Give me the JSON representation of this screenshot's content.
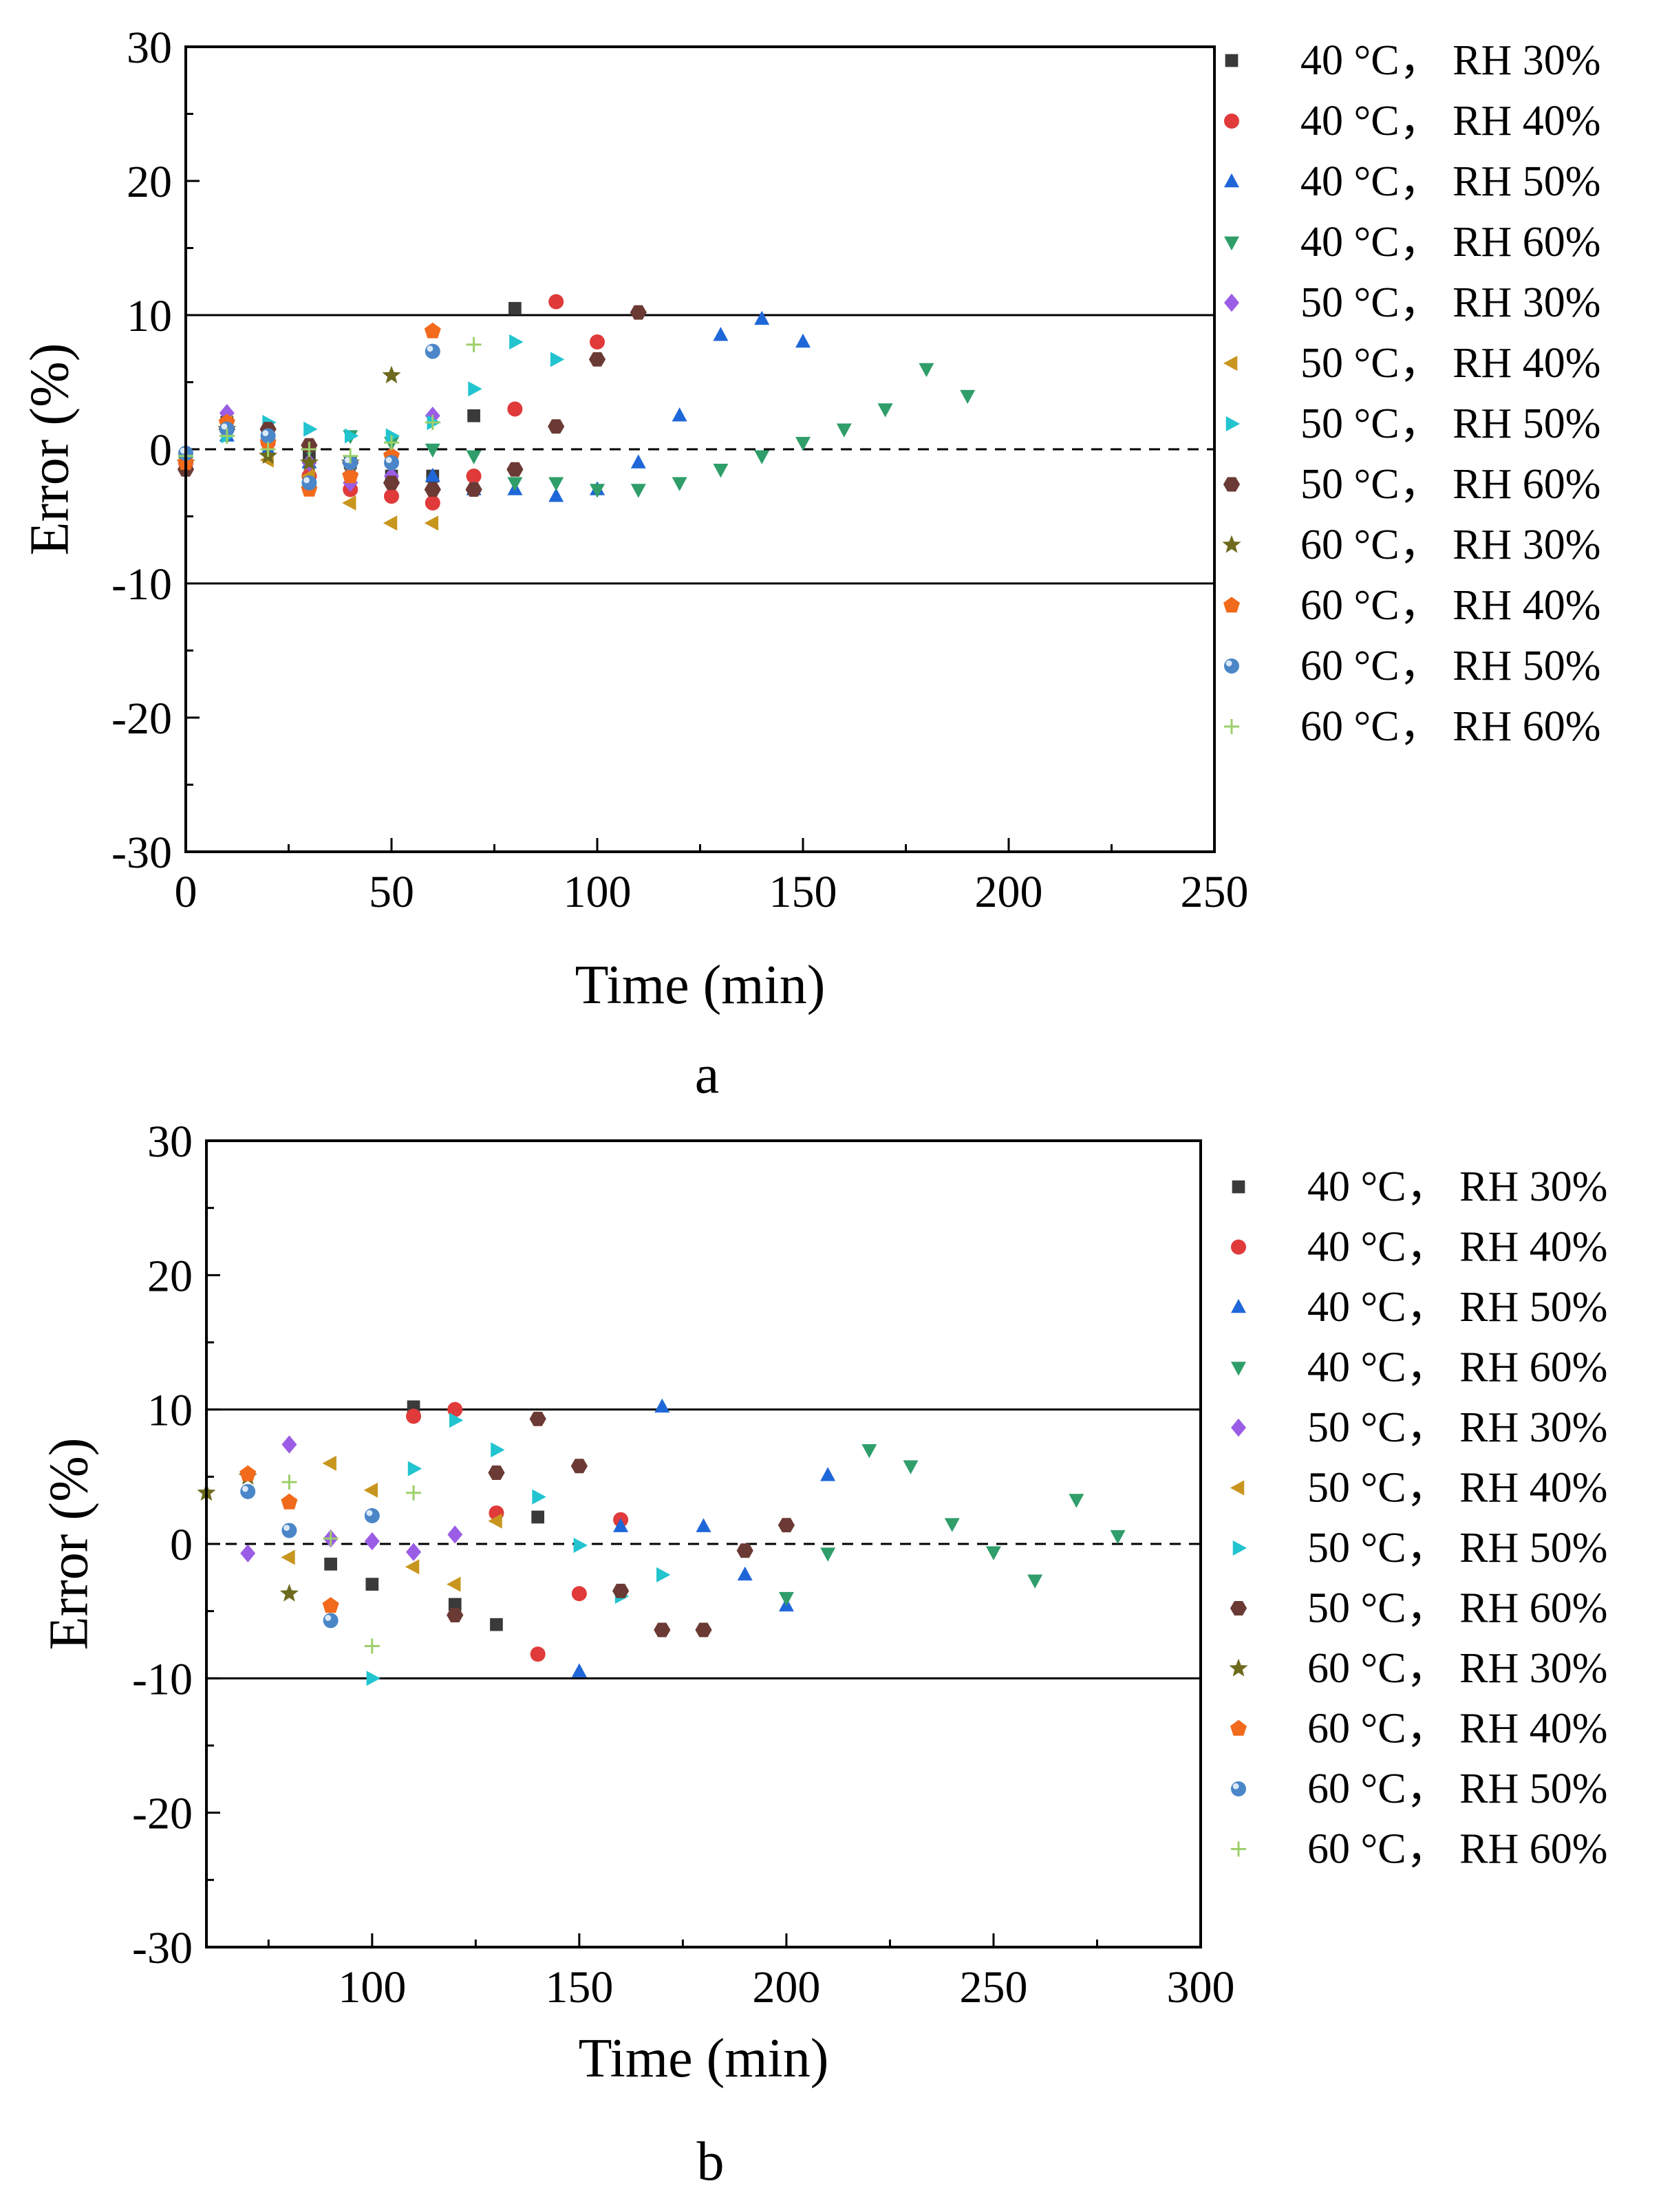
{
  "styles": [
    {
      "shape": "square",
      "color": "#3a3a3a"
    },
    {
      "shape": "circle",
      "color": "#e03a3a"
    },
    {
      "shape": "triangle",
      "color": "#1f67d8"
    },
    {
      "shape": "tridown",
      "color": "#2f9e6a"
    },
    {
      "shape": "diamond",
      "color": "#9b5de5"
    },
    {
      "shape": "triLeft",
      "color": "#c8961e"
    },
    {
      "shape": "triRight",
      "color": "#21c4cf"
    },
    {
      "shape": "hexagon",
      "color": "#6b3a34"
    },
    {
      "shape": "star",
      "color": "#6e6a1e"
    },
    {
      "shape": "pentagon",
      "color": "#f26a1b"
    },
    {
      "shape": "sphere",
      "color": "#4a86c8"
    },
    {
      "shape": "plus",
      "color": "#9ccf6a"
    }
  ],
  "chart_data": [
    {
      "type": "scatter",
      "panel_label": "a",
      "xlabel": "Time (min)",
      "ylabel": "Error (%)",
      "xlim": [
        0,
        250
      ],
      "ylim": [
        -30,
        30
      ],
      "xticks": [
        0,
        50,
        100,
        150,
        200,
        250
      ],
      "yticks": [
        -30,
        -20,
        -10,
        0,
        10,
        20,
        30
      ],
      "ref_solid": [
        10,
        -10
      ],
      "ref_dashed": [
        0
      ],
      "legend_position": "right",
      "series": [
        {
          "name": "40 °C， RH 30%",
          "points": [
            [
              0,
              -1
            ],
            [
              10,
              2
            ],
            [
              20,
              1
            ],
            [
              30,
              -0.5
            ],
            [
              40,
              -1
            ],
            [
              50,
              -2
            ],
            [
              60,
              -2
            ],
            [
              70,
              2.5
            ],
            [
              80,
              10.5
            ]
          ]
        },
        {
          "name": "40 °C， RH 40%",
          "points": [
            [
              0,
              -1
            ],
            [
              10,
              1.5
            ],
            [
              20,
              0.5
            ],
            [
              30,
              -2
            ],
            [
              40,
              -3
            ],
            [
              50,
              -3.5
            ],
            [
              60,
              -4
            ],
            [
              70,
              -2
            ],
            [
              80,
              3
            ],
            [
              90,
              11
            ],
            [
              100,
              8
            ]
          ]
        },
        {
          "name": "40 °C， RH 50%",
          "points": [
            [
              0,
              -1
            ],
            [
              10,
              1
            ],
            [
              20,
              0
            ],
            [
              30,
              -1
            ],
            [
              40,
              -1.5
            ],
            [
              50,
              -2
            ],
            [
              60,
              -2
            ],
            [
              70,
              -3
            ],
            [
              80,
              -3
            ],
            [
              90,
              -3.5
            ],
            [
              100,
              -3
            ],
            [
              110,
              -1
            ],
            [
              120,
              2.5
            ],
            [
              130,
              8.5
            ],
            [
              140,
              9.7
            ],
            [
              150,
              8
            ]
          ]
        },
        {
          "name": "40 °C， RH 60%",
          "points": [
            [
              0,
              -1
            ],
            [
              10,
              1
            ],
            [
              20,
              0.5
            ],
            [
              30,
              0
            ],
            [
              40,
              1
            ],
            [
              50,
              0.5
            ],
            [
              60,
              0
            ],
            [
              70,
              -0.5
            ],
            [
              80,
              -2.5
            ],
            [
              90,
              -2.5
            ],
            [
              100,
              -3
            ],
            [
              110,
              -3
            ],
            [
              120,
              -2.5
            ],
            [
              130,
              -1.5
            ],
            [
              140,
              -0.5
            ],
            [
              150,
              0.5
            ],
            [
              160,
              1.5
            ],
            [
              170,
              3
            ],
            [
              180,
              6
            ],
            [
              190,
              4
            ]
          ]
        },
        {
          "name": "50 °C， RH 30%",
          "points": [
            [
              0,
              -1
            ],
            [
              10,
              2.7
            ],
            [
              20,
              1
            ],
            [
              30,
              -1
            ],
            [
              40,
              -2.5
            ],
            [
              50,
              -2
            ],
            [
              60,
              2.5
            ]
          ]
        },
        {
          "name": "50 °C， RH 40%",
          "points": [
            [
              0,
              -1
            ],
            [
              10,
              2
            ],
            [
              20,
              -0.8
            ],
            [
              30,
              -2
            ],
            [
              40,
              -4
            ],
            [
              50,
              -5.5
            ],
            [
              60,
              -5.5
            ]
          ]
        },
        {
          "name": "50 °C， RH 50%",
          "points": [
            [
              0,
              -1
            ],
            [
              10,
              1
            ],
            [
              20,
              2
            ],
            [
              30,
              1.5
            ],
            [
              40,
              1
            ],
            [
              50,
              1
            ],
            [
              60,
              2
            ],
            [
              70,
              4.5
            ],
            [
              80,
              8
            ],
            [
              90,
              6.7
            ]
          ]
        },
        {
          "name": "50 °C， RH 60%",
          "points": [
            [
              0,
              -1.5
            ],
            [
              10,
              1.5
            ],
            [
              20,
              1.5
            ],
            [
              30,
              0.3
            ],
            [
              40,
              -1
            ],
            [
              50,
              -2.5
            ],
            [
              60,
              -3
            ],
            [
              70,
              -3
            ],
            [
              80,
              -1.5
            ],
            [
              90,
              1.7
            ],
            [
              100,
              6.7
            ],
            [
              110,
              10.2
            ]
          ]
        },
        {
          "name": "60 °C， RH 30%",
          "points": [
            [
              0,
              -1
            ],
            [
              10,
              1.5
            ],
            [
              20,
              -0.5
            ],
            [
              30,
              -1
            ],
            [
              40,
              -1
            ],
            [
              50,
              5.5
            ]
          ]
        },
        {
          "name": "60 °C， RH 40%",
          "points": [
            [
              0,
              -1
            ],
            [
              10,
              2
            ],
            [
              20,
              0.5
            ],
            [
              30,
              -3
            ],
            [
              40,
              -2
            ],
            [
              50,
              -0.5
            ],
            [
              60,
              8.8
            ]
          ]
        },
        {
          "name": "60 °C， RH 50%",
          "points": [
            [
              0,
              -0.3
            ],
            [
              10,
              1.5
            ],
            [
              20,
              1
            ],
            [
              30,
              -2.5
            ],
            [
              40,
              -1
            ],
            [
              50,
              -1
            ],
            [
              60,
              7.3
            ]
          ]
        },
        {
          "name": "60 °C， RH 60%",
          "points": [
            [
              0,
              -0.5
            ],
            [
              10,
              1
            ],
            [
              20,
              0
            ],
            [
              30,
              0
            ],
            [
              40,
              -0.5
            ],
            [
              50,
              0.5
            ],
            [
              60,
              2
            ],
            [
              70,
              7.8
            ]
          ]
        }
      ]
    },
    {
      "type": "scatter",
      "panel_label": "b",
      "xlabel": "Time (min)",
      "ylabel": "Error (%)",
      "xlim": [
        60,
        300
      ],
      "ylim": [
        -30,
        30
      ],
      "xticks": [
        100,
        150,
        200,
        250,
        300
      ],
      "yticks": [
        -30,
        -20,
        -10,
        0,
        10,
        20,
        30
      ],
      "ref_solid": [
        10,
        -10
      ],
      "ref_dashed": [
        0
      ],
      "legend_position": "right",
      "series": [
        {
          "name": "40 °C， RH 30%",
          "points": [
            [
              90,
              -1.5
            ],
            [
              100,
              -3
            ],
            [
              110,
              10.2
            ],
            [
              120,
              -4.5
            ],
            [
              130,
              -6
            ],
            [
              140,
              2
            ]
          ]
        },
        {
          "name": "40 °C， RH 40%",
          "points": [
            [
              110,
              9.5
            ],
            [
              120,
              10
            ],
            [
              130,
              2.3
            ],
            [
              140,
              -8.2
            ],
            [
              150,
              -3.7
            ],
            [
              160,
              1.8
            ]
          ]
        },
        {
          "name": "40 °C， RH 50%",
          "points": [
            [
              150,
              -9.5
            ],
            [
              160,
              1.3
            ],
            [
              170,
              10.2
            ],
            [
              180,
              1.3
            ],
            [
              190,
              -2.3
            ],
            [
              200,
              -4.6
            ],
            [
              210,
              5.1
            ]
          ]
        },
        {
          "name": "40 °C， RH 60%",
          "points": [
            [
              200,
              -4
            ],
            [
              210,
              -0.7
            ],
            [
              220,
              7
            ],
            [
              230,
              5.8
            ],
            [
              240,
              1.5
            ],
            [
              250,
              -0.6
            ],
            [
              260,
              -2.7
            ],
            [
              270,
              3.3
            ],
            [
              280,
              0.6
            ]
          ]
        },
        {
          "name": "50 °C， RH 30%",
          "points": [
            [
              70,
              -0.7
            ],
            [
              80,
              7.4
            ],
            [
              90,
              0.4
            ],
            [
              100,
              0.2
            ],
            [
              110,
              -0.6
            ],
            [
              120,
              0.7
            ]
          ]
        },
        {
          "name": "50 °C， RH 40%",
          "points": [
            [
              80,
              -1
            ],
            [
              90,
              6
            ],
            [
              100,
              4
            ],
            [
              110,
              -1.7
            ],
            [
              120,
              -3
            ],
            [
              130,
              1.7
            ]
          ]
        },
        {
          "name": "50 °C， RH 50%",
          "points": [
            [
              100,
              -10
            ],
            [
              110,
              5.6
            ],
            [
              120,
              9.2
            ],
            [
              130,
              7
            ],
            [
              140,
              3.5
            ],
            [
              150,
              -0.1
            ],
            [
              160,
              -3.9
            ],
            [
              170,
              -2.3
            ]
          ]
        },
        {
          "name": "50 °C， RH 60%",
          "points": [
            [
              120,
              -5.3
            ],
            [
              130,
              5.3
            ],
            [
              140,
              9.3
            ],
            [
              150,
              5.8
            ],
            [
              160,
              -3.5
            ],
            [
              170,
              -6.4
            ],
            [
              180,
              -6.4
            ],
            [
              190,
              -0.5
            ],
            [
              200,
              1.4
            ]
          ]
        },
        {
          "name": "60 °C， RH 30%",
          "points": [
            [
              60,
              3.8
            ],
            [
              70,
              5
            ],
            [
              80,
              -3.7
            ]
          ]
        },
        {
          "name": "60 °C， RH 40%",
          "points": [
            [
              70,
              5.2
            ],
            [
              80,
              3.1
            ],
            [
              90,
              -4.6
            ]
          ]
        },
        {
          "name": "60 °C， RH 50%",
          "points": [
            [
              70,
              3.9
            ],
            [
              80,
              1
            ],
            [
              90,
              -5.7
            ],
            [
              100,
              2.1
            ]
          ]
        },
        {
          "name": "60 °C， RH 60%",
          "points": [
            [
              80,
              4.6
            ],
            [
              90,
              0.4
            ],
            [
              100,
              -7.6
            ],
            [
              110,
              3.8
            ]
          ]
        }
      ]
    }
  ]
}
